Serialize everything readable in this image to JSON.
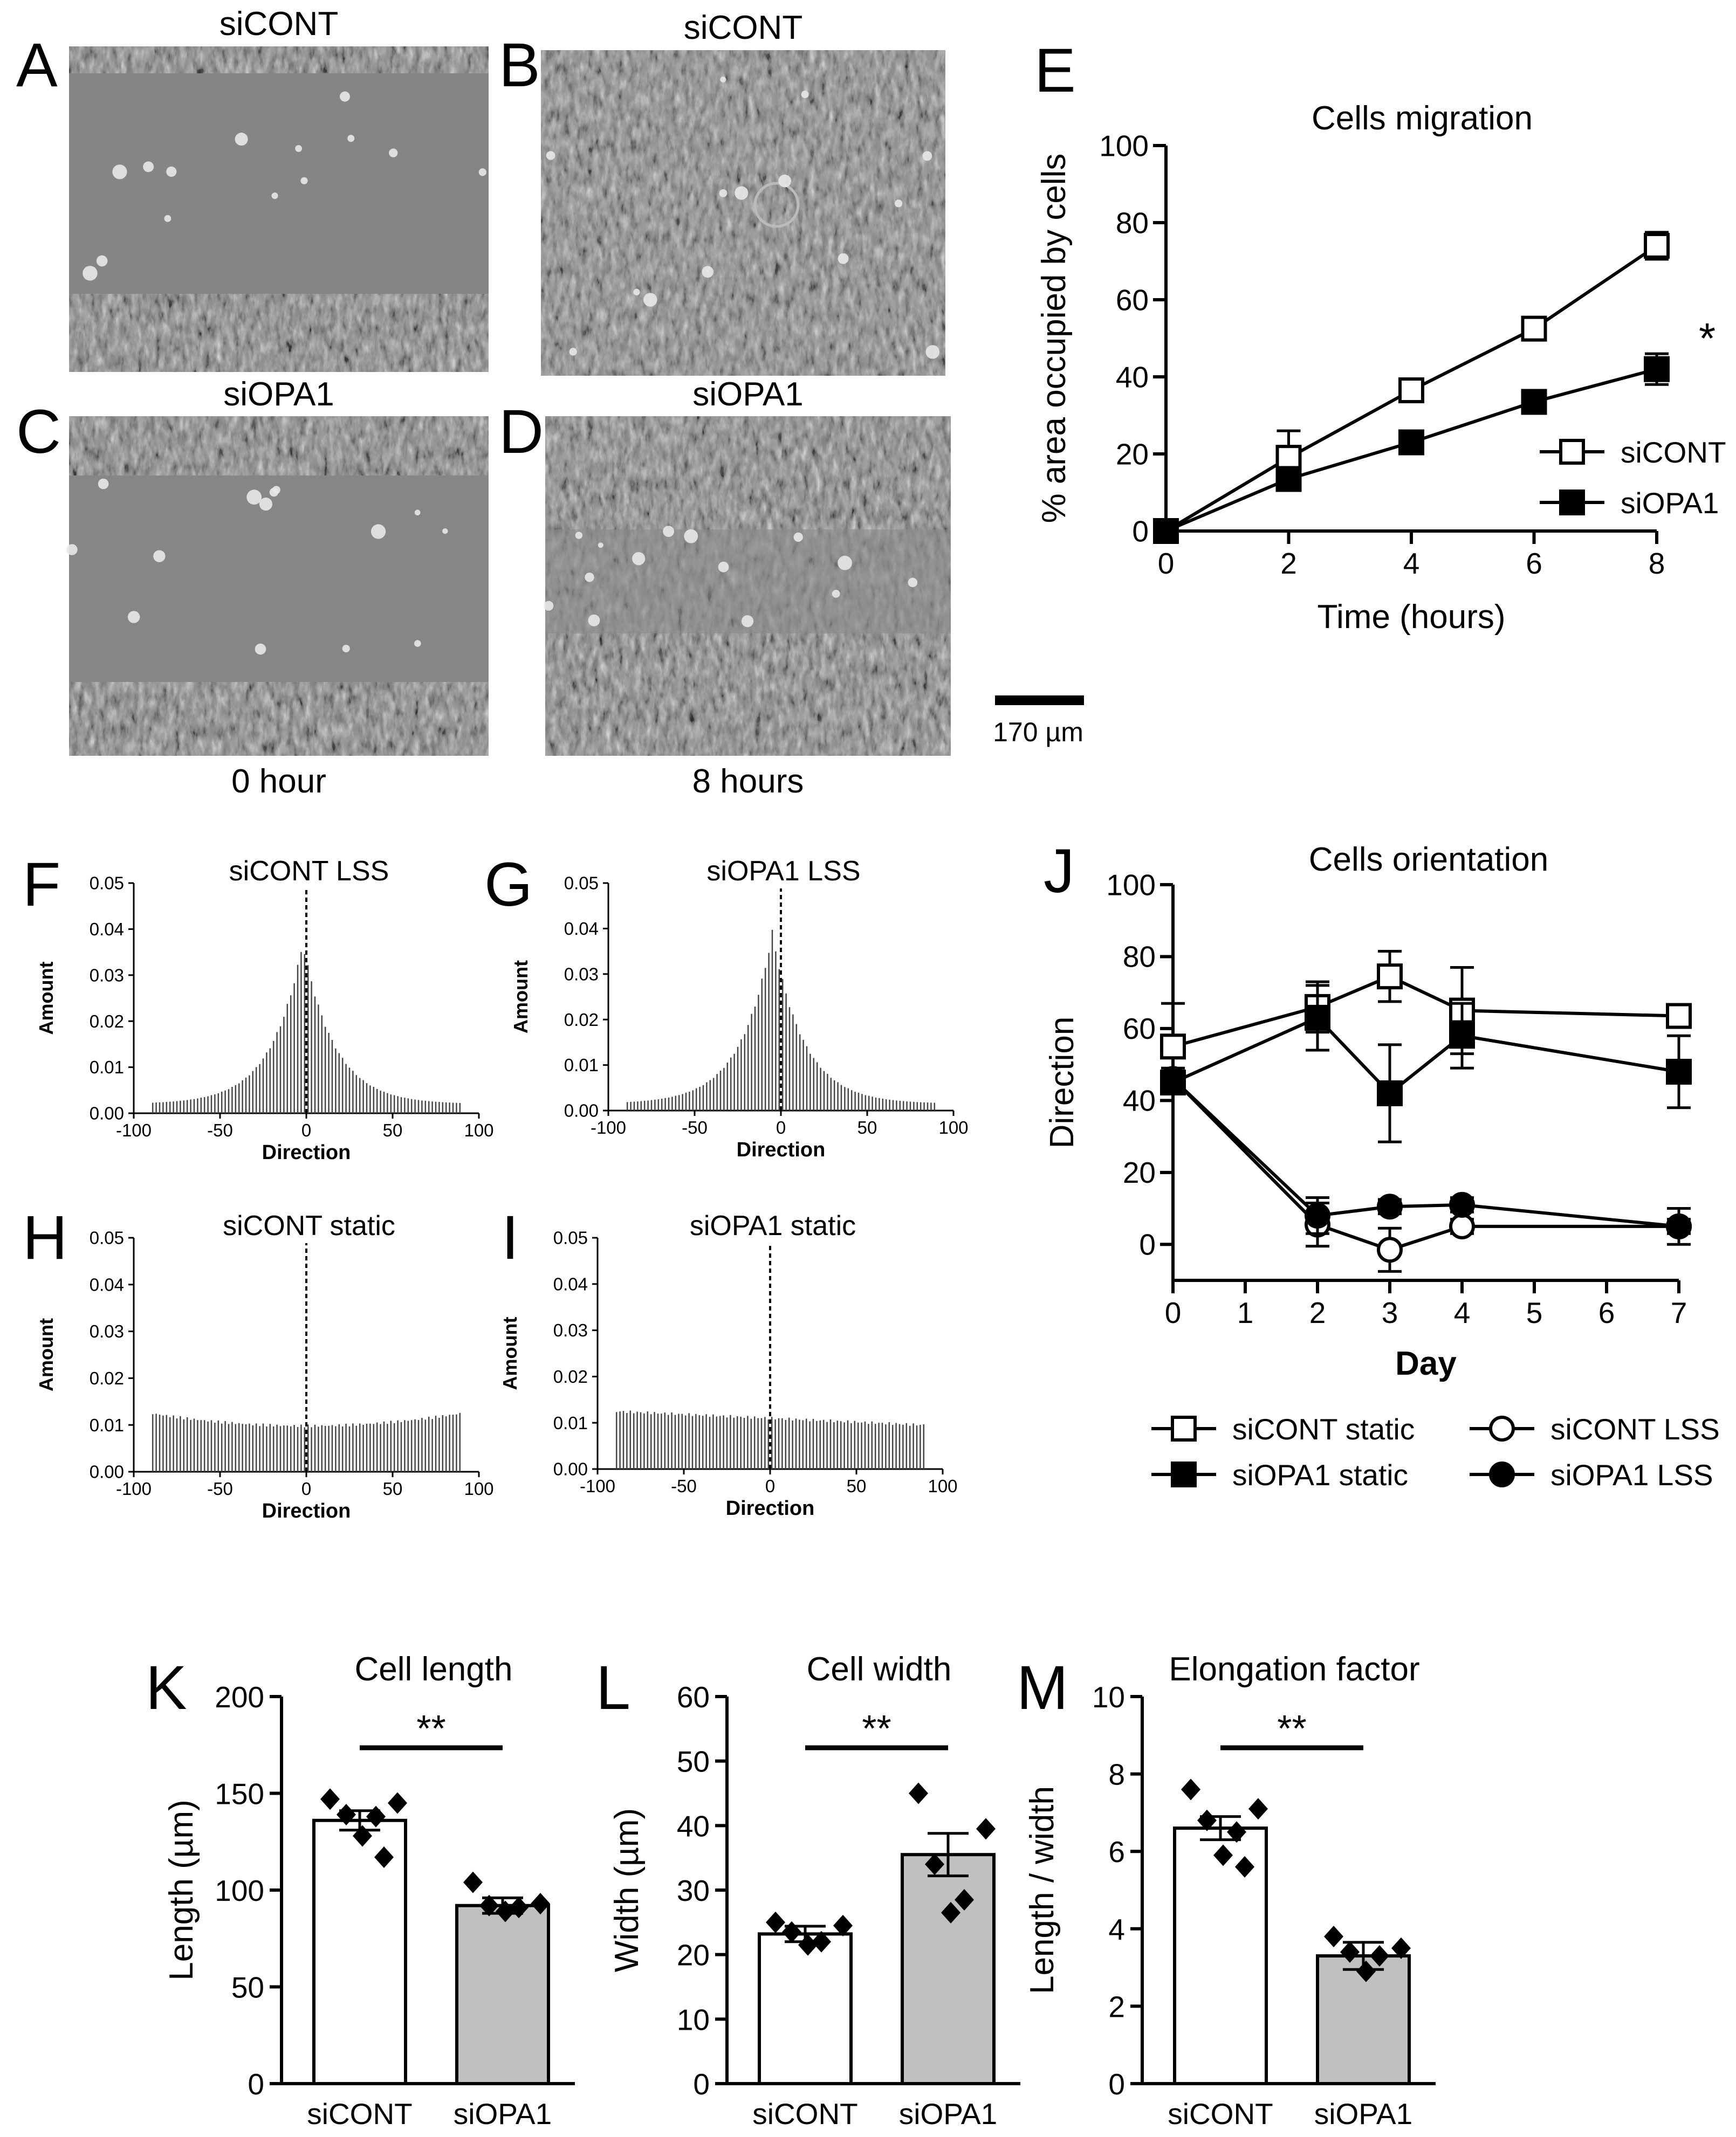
{
  "letters": {
    "A": "A",
    "B": "B",
    "C": "C",
    "D": "D",
    "E": "E",
    "F": "F",
    "G": "G",
    "H": "H",
    "I": "I",
    "J": "J",
    "K": "K",
    "L": "L",
    "M": "M"
  },
  "micrographs": {
    "a_label": "siCONT",
    "b_label": "siCONT",
    "c_label": "siOPA1",
    "d_label": "siOPA1",
    "time_0": "0 hour",
    "time_8": "8 hours",
    "scale_bar": "170 µm"
  },
  "chart_data": [
    {
      "id": "E",
      "type": "line",
      "title": "Cells migration",
      "xlabel": "Time (hours)",
      "ylabel": "% area occupied by cells",
      "xlim": [
        0,
        8
      ],
      "ylim": [
        0,
        100
      ],
      "xticks": [
        0,
        2,
        4,
        6,
        8
      ],
      "yticks": [
        0,
        20,
        40,
        60,
        80,
        100
      ],
      "annotation": "*",
      "series": [
        {
          "name": "siCONT",
          "marker": "open-square",
          "x": [
            0,
            2,
            4,
            6,
            8
          ],
          "y": [
            0,
            19,
            36.5,
            52.5,
            74
          ],
          "err": [
            0,
            7,
            2,
            2,
            3.5
          ]
        },
        {
          "name": "siOPA1",
          "marker": "filled-square",
          "x": [
            0,
            2,
            4,
            6,
            8
          ],
          "y": [
            0,
            13.5,
            23,
            33.5,
            42
          ],
          "err": [
            0,
            2,
            1.5,
            3,
            4
          ]
        }
      ]
    },
    {
      "id": "F",
      "type": "bar",
      "title": "siCONT  LSS",
      "xlabel": "Direction",
      "ylabel": "Amount",
      "xlim": [
        -100,
        100
      ],
      "ylim": [
        0,
        0.05
      ],
      "xticks": [
        -100,
        -50,
        0,
        50,
        100
      ],
      "yticks": [
        0.0,
        0.01,
        0.02,
        0.03,
        0.04,
        0.05
      ],
      "distribution": {
        "shape": "peak",
        "center": -2,
        "peak": 0.037,
        "base": 0.002,
        "width": 20
      }
    },
    {
      "id": "G",
      "type": "bar",
      "title": "siOPA1  LSS",
      "xlabel": "Direction",
      "ylabel": "Amount",
      "xlim": [
        -100,
        100
      ],
      "ylim": [
        0,
        0.05
      ],
      "xticks": [
        -100,
        -50,
        0,
        50,
        100
      ],
      "yticks": [
        0.0,
        0.01,
        0.02,
        0.03,
        0.04,
        0.05
      ],
      "distribution": {
        "shape": "peak",
        "center": -5,
        "peak": 0.039,
        "base": 0.0015,
        "width": 20
      }
    },
    {
      "id": "H",
      "type": "bar",
      "title": "siCONT static",
      "xlabel": "Direction",
      "ylabel": "Amount",
      "xlim": [
        -100,
        100
      ],
      "ylim": [
        0,
        0.05
      ],
      "xticks": [
        -100,
        -50,
        0,
        50,
        100
      ],
      "yticks": [
        0.0,
        0.01,
        0.02,
        0.03,
        0.04,
        0.05
      ],
      "distribution": {
        "shape": "flat",
        "edge": 0.0125,
        "middle": 0.0098
      }
    },
    {
      "id": "I",
      "type": "bar",
      "title": "siOPA1 static",
      "xlabel": "Direction",
      "ylabel": "Amount",
      "xlim": [
        -100,
        100
      ],
      "ylim": [
        0,
        0.05
      ],
      "xticks": [
        -100,
        -50,
        0,
        50,
        100
      ],
      "yticks": [
        0.0,
        0.01,
        0.02,
        0.03,
        0.04,
        0.05
      ],
      "distribution": {
        "shape": "skew",
        "left": 0.0125,
        "right": 0.0095
      }
    },
    {
      "id": "J",
      "type": "line",
      "title": "Cells orientation",
      "xlabel": "Day",
      "ylabel": "Direction",
      "xlim": [
        0,
        7
      ],
      "ylim": [
        -10,
        100
      ],
      "xticks": [
        0,
        1,
        2,
        3,
        4,
        5,
        6,
        7
      ],
      "yticks": [
        0,
        20,
        40,
        60,
        80,
        100
      ],
      "series": [
        {
          "name": "siCONT static",
          "marker": "open-square",
          "x": [
            0,
            2,
            3,
            4,
            7
          ],
          "y": [
            55,
            66,
            74.5,
            65,
            63.5
          ],
          "err": [
            12,
            7,
            7,
            12,
            3
          ]
        },
        {
          "name": "siOPA1 static",
          "marker": "filled-square",
          "x": [
            0,
            2,
            3,
            4,
            7
          ],
          "y": [
            45,
            63,
            42,
            58,
            48
          ],
          "err": [
            3,
            9,
            13.5,
            9,
            10
          ]
        },
        {
          "name": "siCONT LSS",
          "marker": "open-circle",
          "x": [
            0,
            2,
            3,
            4,
            7
          ],
          "y": [
            46,
            5.5,
            -1.5,
            5,
            5
          ],
          "err": [
            3,
            6,
            6,
            2,
            5
          ]
        },
        {
          "name": "siOPA1 LSS",
          "marker": "filled-circle",
          "x": [
            0,
            2,
            3,
            4,
            7
          ],
          "y": [
            46,
            8,
            10.5,
            11,
            5
          ],
          "err": [
            2,
            5,
            2,
            2,
            2
          ]
        }
      ]
    },
    {
      "id": "K",
      "type": "bar",
      "title": "Cell length",
      "ylabel": "Length (µm)",
      "categories": [
        "siCONT",
        "siOPA1"
      ],
      "ylim": [
        0,
        200
      ],
      "yticks": [
        0,
        50,
        100,
        150,
        200
      ],
      "values": [
        136,
        92
      ],
      "err": [
        5,
        4
      ],
      "significance": "**",
      "points": [
        [
          147,
          145,
          139,
          138,
          128,
          117
        ],
        [
          104,
          93,
          92,
          91,
          89
        ]
      ]
    },
    {
      "id": "L",
      "type": "bar",
      "title": "Cell width",
      "ylabel": "Width (µm)",
      "categories": [
        "siCONT",
        "siOPA1"
      ],
      "ylim": [
        0,
        60
      ],
      "yticks": [
        0,
        10,
        20,
        30,
        40,
        50,
        60
      ],
      "values": [
        23.2,
        35.5
      ],
      "err": [
        1.2,
        3.3
      ],
      "significance": "**",
      "points": [
        [
          25,
          24.5,
          23.5,
          22,
          21.5
        ],
        [
          45,
          39.5,
          34,
          28.5,
          26.5
        ]
      ]
    },
    {
      "id": "M",
      "type": "bar",
      "title": "Elongation factor",
      "ylabel": "Length / width",
      "categories": [
        "siCONT",
        "siOPA1"
      ],
      "ylim": [
        0,
        10
      ],
      "yticks": [
        0,
        2,
        4,
        6,
        8,
        10
      ],
      "values": [
        6.6,
        3.3
      ],
      "err": [
        0.3,
        0.35
      ],
      "significance": "**",
      "points": [
        [
          7.6,
          7.1,
          6.8,
          6.5,
          5.9,
          5.6
        ],
        [
          3.8,
          3.5,
          3.4,
          3.3,
          2.9
        ]
      ]
    }
  ]
}
